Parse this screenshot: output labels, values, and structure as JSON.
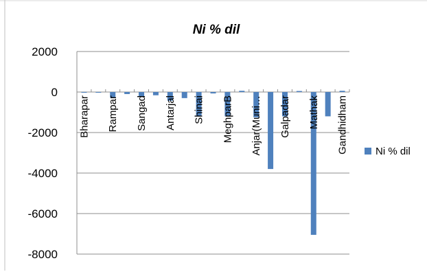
{
  "chart_data": {
    "type": "bar",
    "title": "Ni % dil",
    "xlabel": "",
    "ylabel": "",
    "ylim": [
      -8000,
      2000
    ],
    "yticks": [
      2000,
      0,
      -2000,
      -4000,
      -6000,
      -8000
    ],
    "grid": true,
    "legend_position": "right",
    "bar_color": "#4f81bd",
    "categories": [
      "Bharapar",
      "",
      "Rampar",
      "",
      "Sangad",
      "",
      "Antarjal",
      "",
      "Shinai",
      "",
      "MeghparB",
      "",
      "Anjar(Muni…",
      "",
      "Galpadar",
      "",
      "Mathak",
      "",
      "Gandhidham"
    ],
    "series": [
      {
        "name": "Ni % dil",
        "values": [
          -30,
          -20,
          -280,
          -100,
          -230,
          -160,
          -430,
          -300,
          -1200,
          -70,
          -1200,
          60,
          -1250,
          -3800,
          -1200,
          50,
          -7050,
          -1200,
          60
        ]
      }
    ]
  }
}
